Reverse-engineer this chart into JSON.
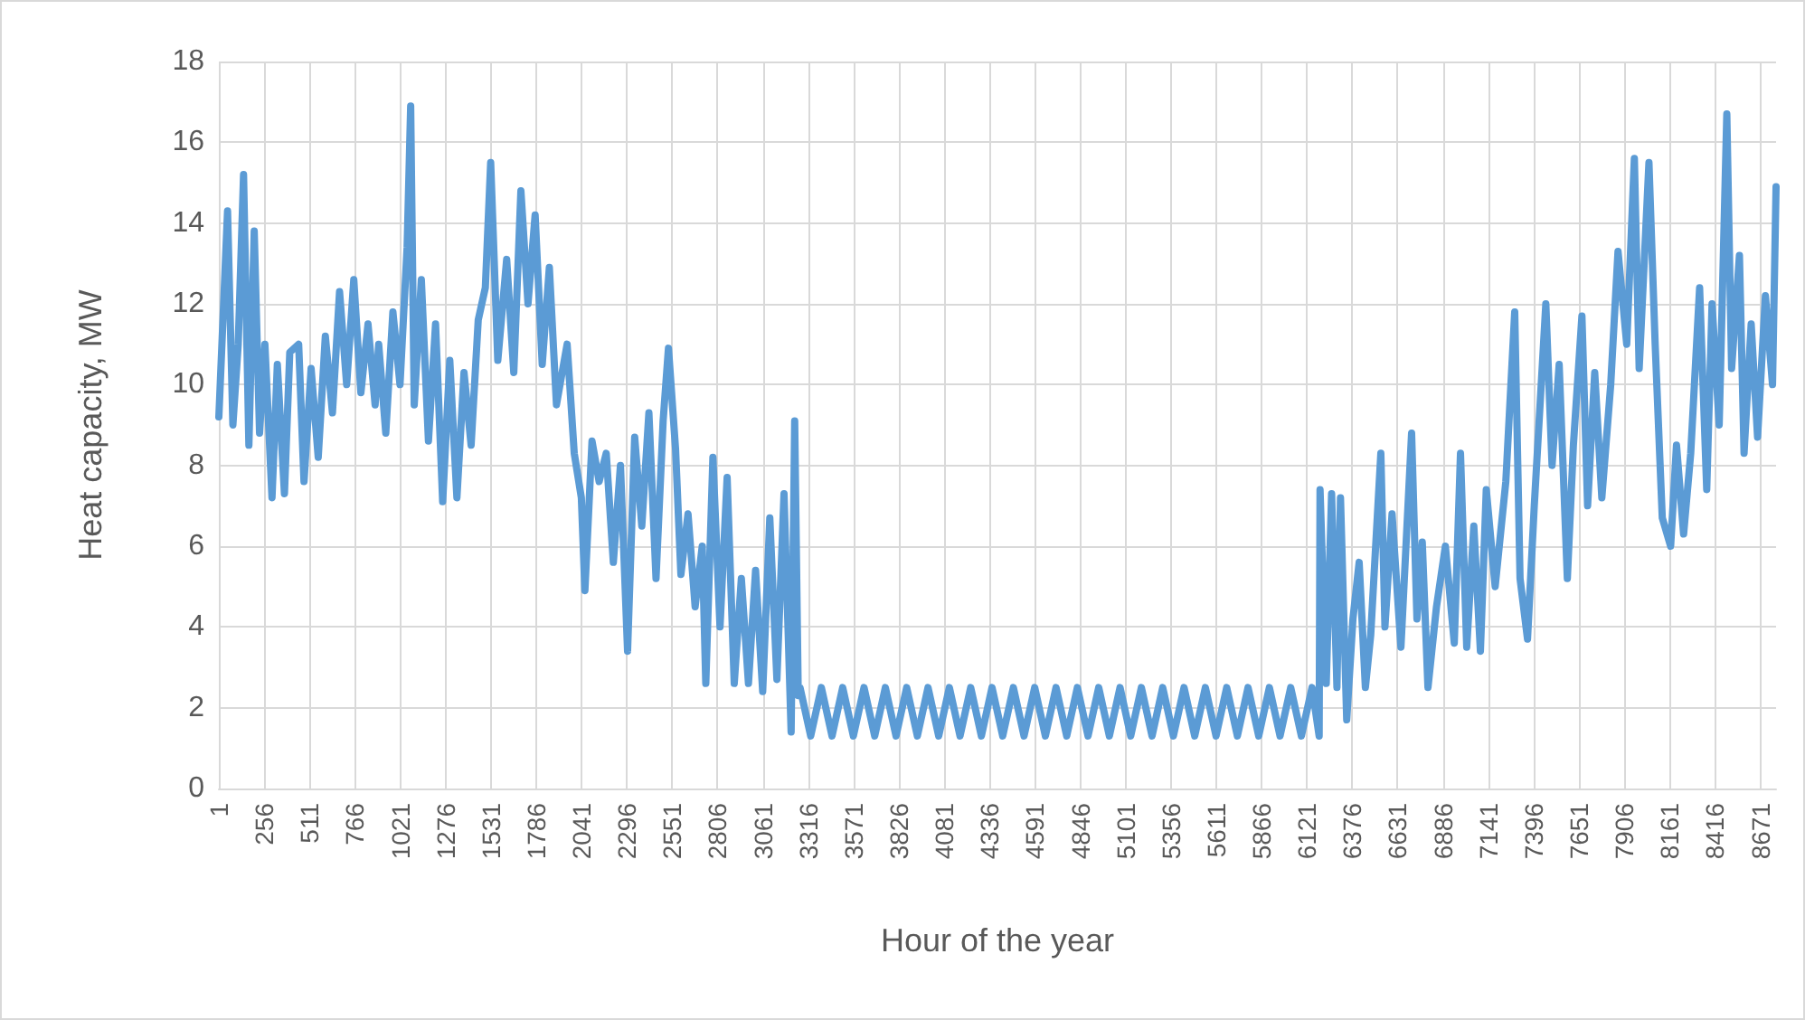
{
  "chart_data": {
    "type": "line",
    "xlabel": "Hour of the year",
    "ylabel": "Heat capacity, MW",
    "xlim": [
      1,
      8760
    ],
    "xticks": [
      1,
      256,
      511,
      766,
      1021,
      1276,
      1531,
      1786,
      2041,
      2296,
      2551,
      2806,
      3061,
      3316,
      3571,
      3826,
      4081,
      4336,
      4591,
      4846,
      5101,
      5356,
      5611,
      5866,
      6121,
      6376,
      6631,
      6886,
      7141,
      7396,
      7651,
      7906,
      8161,
      8416,
      8671
    ],
    "ylim": [
      0,
      18
    ],
    "yticks": [
      0,
      2,
      4,
      6,
      8,
      10,
      12,
      14,
      16,
      18
    ],
    "grid": true,
    "marker": "none",
    "line_style": "solid",
    "series": [
      {
        "color": "#5b9bd5",
        "x": [
          1,
          50,
          80,
          110,
          140,
          170,
          200,
          230,
          260,
          300,
          330,
          370,
          400,
          450,
          480,
          520,
          560,
          600,
          640,
          680,
          720,
          760,
          800,
          840,
          880,
          900,
          940,
          980,
          1020,
          1060,
          1080,
          1100,
          1140,
          1180,
          1220,
          1260,
          1300,
          1340,
          1380,
          1420,
          1460,
          1500,
          1530,
          1570,
          1620,
          1660,
          1700,
          1740,
          1780,
          1820,
          1860,
          1900,
          1960,
          2000,
          2040,
          2060,
          2100,
          2140,
          2180,
          2220,
          2260,
          2300,
          2340,
          2380,
          2420,
          2460,
          2500,
          2530,
          2570,
          2600,
          2640,
          2680,
          2720,
          2740,
          2780,
          2820,
          2860,
          2900,
          2940,
          2980,
          3020,
          3060,
          3100,
          3140,
          3180,
          3220,
          3240,
          3260,
          3270,
          3330,
          3390,
          3450,
          3510,
          3570,
          3630,
          3690,
          3750,
          3810,
          3870,
          3930,
          3990,
          4050,
          4110,
          4170,
          4230,
          4290,
          4350,
          4410,
          4470,
          4530,
          4590,
          4650,
          4710,
          4770,
          4830,
          4890,
          4950,
          5010,
          5070,
          5130,
          5190,
          5250,
          5310,
          5370,
          5430,
          5490,
          5550,
          5610,
          5670,
          5730,
          5790,
          5850,
          5910,
          5970,
          6030,
          6090,
          6150,
          6190,
          6195,
          6230,
          6260,
          6290,
          6310,
          6345,
          6380,
          6415,
          6450,
          6480,
          6537,
          6560,
          6600,
          6650,
          6710,
          6740,
          6770,
          6802,
          6850,
          6900,
          6950,
          6985,
          7020,
          7060,
          7097,
          7130,
          7180,
          7240,
          7290,
          7320,
          7362,
          7400,
          7465,
          7500,
          7540,
          7586,
          7620,
          7668,
          7700,
          7740,
          7780,
          7830,
          7871,
          7920,
          7963,
          7990,
          8045,
          8080,
          8120,
          8167,
          8200,
          8240,
          8280,
          8330,
          8370,
          8400,
          8440,
          8483,
          8510,
          8554,
          8580,
          8620,
          8656,
          8700,
          8740,
          8760
        ],
        "values": [
          9.2,
          14.3,
          9,
          11,
          15.2,
          8.5,
          13.8,
          8.8,
          11,
          7.2,
          10.5,
          7.3,
          10.8,
          11,
          7.6,
          10.4,
          8.2,
          11.2,
          9.3,
          12.3,
          10,
          12.6,
          9.8,
          11.5,
          9.5,
          11,
          8.8,
          11.8,
          10,
          13.4,
          16.9,
          9.5,
          12.6,
          8.6,
          11.5,
          7.1,
          10.6,
          7.2,
          10.3,
          8.5,
          11.6,
          12.4,
          15.5,
          10.6,
          13.1,
          10.3,
          14.8,
          12,
          14.2,
          10.5,
          12.9,
          9.5,
          11,
          8.3,
          7.2,
          4.9,
          8.6,
          7.6,
          8.3,
          5.6,
          8,
          3.4,
          8.7,
          6.5,
          9.3,
          5.2,
          9.1,
          10.9,
          8.4,
          5.3,
          6.8,
          4.5,
          6,
          2.6,
          8.2,
          4,
          7.7,
          2.6,
          5.2,
          2.6,
          5.4,
          2.4,
          6.7,
          2.7,
          7.3,
          1.4,
          9.1,
          2.3,
          2.5,
          1.3,
          2.5,
          1.3,
          2.5,
          1.3,
          2.5,
          1.3,
          2.5,
          1.3,
          2.5,
          1.3,
          2.5,
          1.3,
          2.5,
          1.3,
          2.5,
          1.3,
          2.5,
          1.3,
          2.5,
          1.3,
          2.5,
          1.3,
          2.5,
          1.3,
          2.5,
          1.3,
          2.5,
          1.3,
          2.5,
          1.3,
          2.5,
          1.3,
          2.5,
          1.3,
          2.5,
          1.3,
          2.5,
          1.3,
          2.5,
          1.3,
          2.5,
          1.3,
          2.5,
          1.3,
          2.5,
          1.3,
          2.5,
          1.3,
          7.4,
          2.6,
          7.3,
          2.5,
          7.2,
          1.7,
          4.2,
          5.6,
          2.5,
          3.8,
          8.3,
          4,
          6.8,
          3.5,
          8.8,
          4.2,
          6.1,
          2.5,
          4.5,
          6,
          3.6,
          8.3,
          3.5,
          6.5,
          3.4,
          7.4,
          5,
          7.6,
          11.8,
          5.2,
          3.7,
          7,
          12,
          8,
          10.5,
          5.2,
          8.5,
          11.7,
          7,
          10.3,
          7.2,
          10,
          13.3,
          11,
          15.6,
          10.4,
          15.5,
          11,
          6.7,
          6,
          8.5,
          6.3,
          8.3,
          12.4,
          7.4,
          12,
          9,
          16.7,
          10.4,
          13.2,
          8.3,
          11.5,
          8.7,
          12.2,
          10,
          14.9
        ]
      }
    ]
  }
}
